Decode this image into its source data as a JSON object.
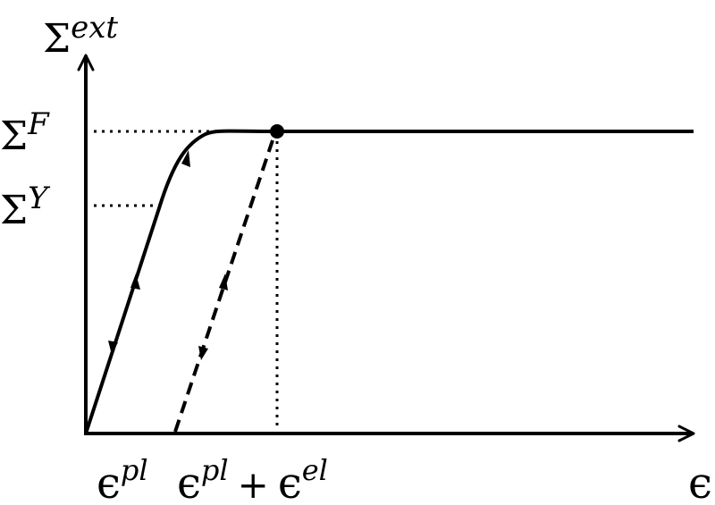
{
  "diagram": {
    "y_axis_label": {
      "base": "Σ",
      "sup": "ext"
    },
    "x_axis_label": {
      "base": "ϵ"
    },
    "sigma_f_label": {
      "base": "Σ",
      "sup": "F"
    },
    "sigma_y_label": {
      "base": "Σ",
      "sup": "Y"
    },
    "eps_pl_label": {
      "base": "ϵ",
      "sup": "pl"
    },
    "eps_total_label": {
      "base1": "ϵ",
      "sup1": "pl",
      "plus": "+",
      "base2": "ϵ",
      "sup2": "el"
    },
    "colors": {
      "stroke": "#000000",
      "background": "#ffffff"
    }
  }
}
